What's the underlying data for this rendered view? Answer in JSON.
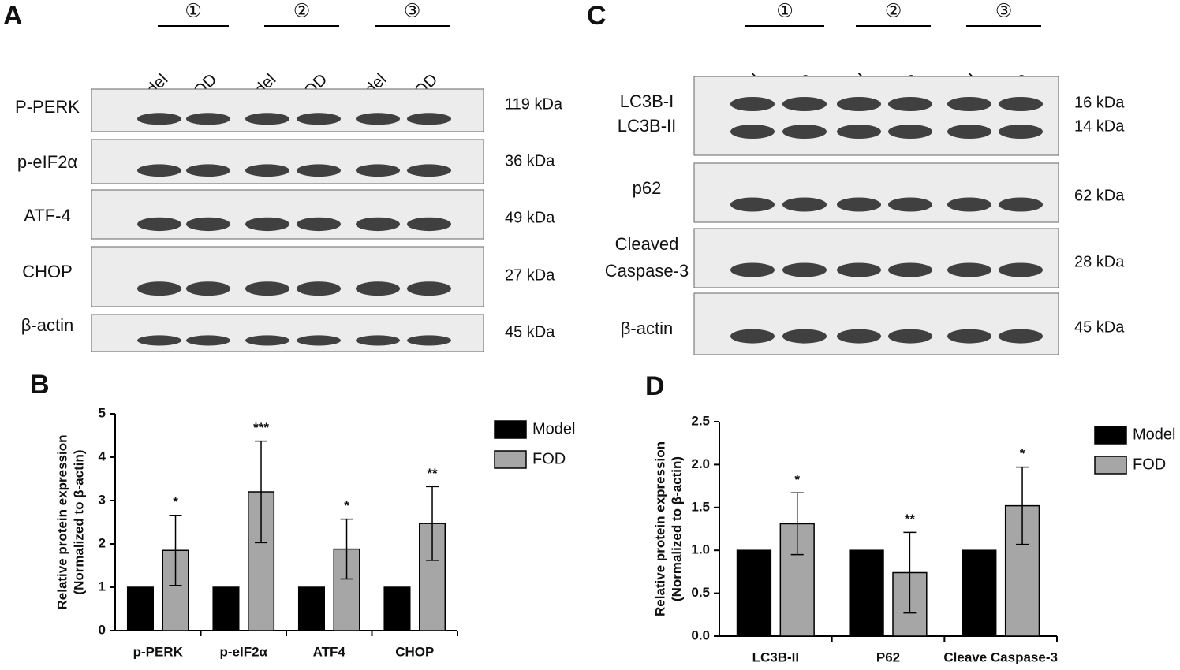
{
  "blots": [
    {
      "letter": "A",
      "groups": [
        "①",
        "②",
        "③"
      ],
      "lanes": [
        "Model",
        "FOD",
        "Model",
        "FOD",
        "Model",
        "FOD"
      ],
      "rows": [
        {
          "labels": [
            "P-PERK"
          ],
          "sizes": [
            "119 kDa"
          ]
        },
        {
          "labels": [
            "p-eIF2α"
          ],
          "sizes": [
            "36 kDa"
          ]
        },
        {
          "labels": [
            "ATF-4"
          ],
          "sizes": [
            "49 kDa"
          ]
        },
        {
          "labels": [
            "CHOP"
          ],
          "sizes": [
            "27 kDa"
          ]
        },
        {
          "labels": [
            "β-actin"
          ],
          "sizes": [
            "45 kDa"
          ]
        }
      ]
    },
    {
      "letter": "C",
      "groups": [
        "①",
        "②",
        "③"
      ],
      "lanes": [
        "Model",
        "FOD",
        "Model",
        "FOD",
        "Model",
        "FOD"
      ],
      "rows": [
        {
          "labels": [
            "LC3B-I",
            "LC3B-II"
          ],
          "sizes": [
            "16 kDa",
            "14 kDa"
          ]
        },
        {
          "labels": [
            "p62"
          ],
          "sizes": [
            "62 kDa"
          ]
        },
        {
          "labels": [
            "Cleaved",
            "Caspase-3"
          ],
          "sizes": [
            "28 kDa"
          ]
        },
        {
          "labels": [
            "β-actin"
          ],
          "sizes": [
            "45 kDa"
          ]
        }
      ]
    }
  ],
  "chart_data": [
    {
      "type": "bar",
      "letter": "B",
      "ylabel": [
        "Relative protein expression",
        "(Normalized to β-actin)"
      ],
      "categories": [
        "p-PERK",
        "p-eIF2α",
        "ATF4",
        "CHOP"
      ],
      "series": [
        {
          "name": "Model",
          "color": "#000000",
          "values": [
            1,
            1,
            1,
            1
          ]
        },
        {
          "name": "FOD",
          "color": "#a6a6a6",
          "values": [
            1.85,
            3.2,
            1.88,
            2.47
          ],
          "errors": [
            0.81,
            1.17,
            0.69,
            0.85
          ]
        }
      ],
      "significance": [
        "*",
        "***",
        "*",
        "**"
      ],
      "ylim": [
        0,
        5
      ],
      "yticks": [
        0,
        1,
        2,
        3,
        4,
        5
      ]
    },
    {
      "type": "bar",
      "letter": "D",
      "ylabel": [
        "Relative protein expression",
        "(Normalized to β-actin)"
      ],
      "categories": [
        "LC3B-II",
        "P62",
        "Cleave Caspase-3"
      ],
      "series": [
        {
          "name": "Model",
          "color": "#000000",
          "values": [
            1,
            1,
            1
          ]
        },
        {
          "name": "FOD",
          "color": "#a6a6a6",
          "values": [
            1.31,
            0.74,
            1.52
          ],
          "errors": [
            0.36,
            0.47,
            0.45
          ]
        }
      ],
      "significance": [
        "*",
        "**",
        "*"
      ],
      "ylim": [
        0,
        2.5
      ],
      "yticks": [
        {
          "value": 0,
          "label": "0.0"
        },
        {
          "value": 0.5,
          "label": "0.5"
        },
        {
          "value": 1,
          "label": "1.0"
        },
        {
          "value": 1.5,
          "label": "1.5"
        },
        {
          "value": 2,
          "label": "2.0"
        },
        {
          "value": 2.5,
          "label": "2.5"
        }
      ]
    }
  ]
}
